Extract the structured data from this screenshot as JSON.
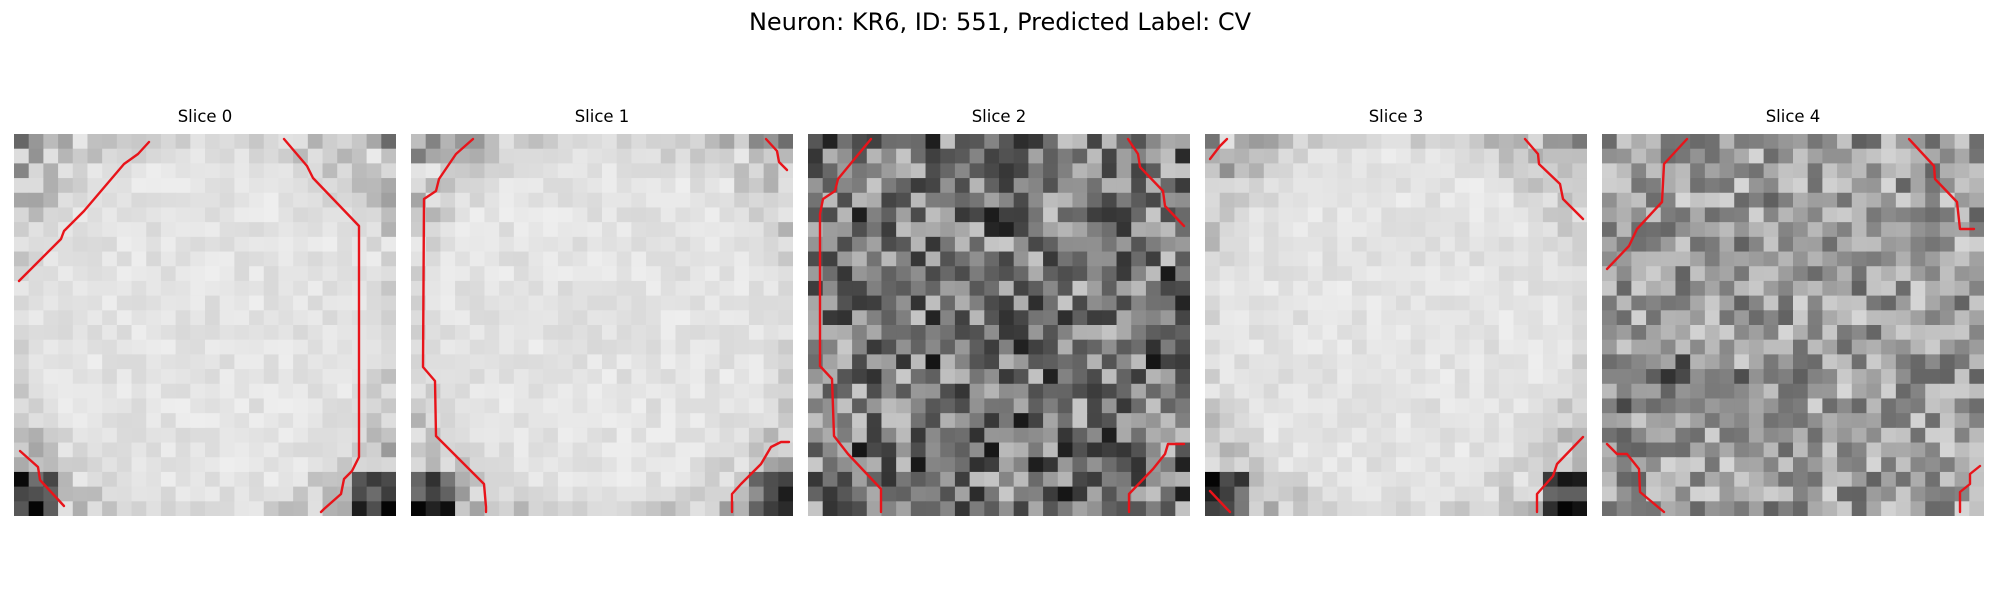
{
  "figure": {
    "title": "Neuron: KR6, ID: 551, Predicted Label: CV"
  },
  "slices": [
    {
      "title": "Slice 0",
      "texture": "smooth-bright"
    },
    {
      "title": "Slice 1",
      "texture": "smooth-bright"
    },
    {
      "title": "Slice 2",
      "texture": "noisy-dark"
    },
    {
      "title": "Slice 3",
      "texture": "smooth-bright"
    },
    {
      "title": "Slice 4",
      "texture": "noisy-medium"
    }
  ],
  "colors": {
    "contour": "#e8141a",
    "background": "#ffffff"
  },
  "colormap": "grayscale-inverted",
  "grid_size": [
    26,
    26
  ]
}
